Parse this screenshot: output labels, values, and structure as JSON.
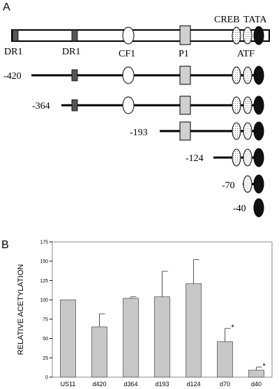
{
  "panel_a": {
    "panel_label": "A",
    "labels": {
      "dr1_left": "DR1",
      "dr1_right": "DR1",
      "cf1": "CF1",
      "p1": "P1",
      "creb": "CREB",
      "tata": "TATA",
      "atf": "ATF"
    },
    "deletions": [
      "-420",
      "-364",
      "-193",
      "-124",
      "-70",
      "-40"
    ]
  },
  "panel_b": {
    "panel_label": "B",
    "chart_data": {
      "type": "bar",
      "title": "",
      "xlabel": "",
      "ylabel": "RELATIVE ACETYLATION",
      "ylim": [
        0,
        175
      ],
      "yticks": [
        0,
        25,
        50,
        75,
        100,
        125,
        150,
        175
      ],
      "categories": [
        "US11",
        "d420",
        "d364",
        "d193",
        "d124",
        "d70",
        "d40"
      ],
      "values": [
        100,
        65,
        102,
        104,
        121,
        46,
        9
      ],
      "errors": [
        0,
        17,
        2,
        33,
        31,
        17,
        4
      ],
      "significance": [
        "",
        "",
        "",
        "",
        "",
        "*",
        "*"
      ],
      "bar_color": "#c8c8c8",
      "grid": false
    }
  }
}
